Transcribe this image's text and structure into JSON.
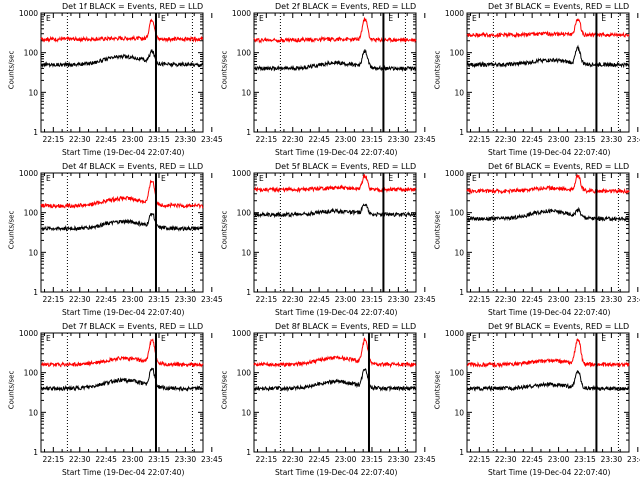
{
  "chart_data": [
    {
      "type": "line",
      "title": "Det 1f BLACK = Events, RED = LLD",
      "xlabel": "Start Time (19-Dec-04 22:07:40)",
      "ylabel": "Counts/sec",
      "yscale": "log",
      "ylim": [
        1,
        1000
      ],
      "x_ticks": [
        "22:15",
        "22:30",
        "22:45",
        "23:00",
        "23:15",
        "23:30",
        "23:45"
      ],
      "yticks": [
        "1",
        "10",
        "100",
        "1000"
      ],
      "xlim_min": [
        8,
        100
      ],
      "marker_dotted_min": 23,
      "marker_solid_min": 73.3,
      "marker_label": "E",
      "marker_dotted_right_min": 94,
      "series": [
        {
          "name": "Events",
          "color": "#000000",
          "level": 50,
          "bump": 80,
          "peak": 110
        },
        {
          "name": "LLD",
          "color": "#ff0000",
          "level": 220,
          "bump": 230,
          "peak": 700
        }
      ]
    },
    {
      "type": "line",
      "title": "Det 2f BLACK = Events, RED = LLD",
      "xlabel": "Start Time (19-Dec-04 22:07:40)",
      "ylabel": "Counts/sec",
      "yscale": "log",
      "ylim": [
        1,
        1000
      ],
      "x_ticks": [
        "22:15",
        "22:30",
        "22:45",
        "23:00",
        "23:15",
        "23:30",
        "23:45"
      ],
      "yticks": [
        "1",
        "10",
        "100",
        "1000"
      ],
      "xlim_min": [
        8,
        100
      ],
      "marker_dotted_min": 23,
      "marker_solid_min": 81.5,
      "marker_label": "E",
      "marker_dotted_right_min": 94,
      "series": [
        {
          "name": "Events",
          "color": "#000000",
          "level": 40,
          "bump": 55,
          "peak": 110
        },
        {
          "name": "LLD",
          "color": "#ff0000",
          "level": 210,
          "bump": 220,
          "peak": 700
        }
      ]
    },
    {
      "type": "line",
      "title": "Det 3f BLACK = Events, RED = LLD",
      "xlabel": "Start Time (19-Dec-04 22:07:40)",
      "ylabel": "Counts/sec",
      "yscale": "log",
      "ylim": [
        1,
        1000
      ],
      "x_ticks": [
        "22:15",
        "22:30",
        "22:45",
        "23:00",
        "23:15",
        "23:30",
        "23:45"
      ],
      "yticks": [
        "1",
        "10",
        "100",
        "1000"
      ],
      "xlim_min": [
        8,
        100
      ],
      "marker_dotted_min": 23,
      "marker_solid_min": 81.5,
      "marker_label": "E",
      "marker_dotted_right_min": 94,
      "series": [
        {
          "name": "Events",
          "color": "#000000",
          "level": 50,
          "bump": 65,
          "peak": 130
        },
        {
          "name": "LLD",
          "color": "#ff0000",
          "level": 280,
          "bump": 300,
          "peak": 700
        }
      ]
    },
    {
      "type": "line",
      "title": "Det 4f BLACK = Events, RED = LLD",
      "xlabel": "Start Time (19-Dec-04 22:07:40)",
      "ylabel": "Counts/sec",
      "yscale": "log",
      "ylim": [
        1,
        1000
      ],
      "x_ticks": [
        "22:15",
        "22:30",
        "22:45",
        "23:00",
        "23:15",
        "23:30",
        "23:45"
      ],
      "yticks": [
        "1",
        "10",
        "100",
        "1000"
      ],
      "xlim_min": [
        8,
        100
      ],
      "marker_dotted_min": 23,
      "marker_solid_min": 73.3,
      "marker_label": "E",
      "marker_dotted_right_min": 94,
      "series": [
        {
          "name": "Events",
          "color": "#000000",
          "level": 40,
          "bump": 60,
          "peak": 100
        },
        {
          "name": "LLD",
          "color": "#ff0000",
          "level": 150,
          "bump": 230,
          "peak": 650
        }
      ]
    },
    {
      "type": "line",
      "title": "Det 5f BLACK = Events, RED = LLD",
      "xlabel": "Start Time (19-Dec-04 22:07:40)",
      "ylabel": "Counts/sec",
      "yscale": "log",
      "ylim": [
        1,
        1000
      ],
      "x_ticks": [
        "22:15",
        "22:30",
        "22:45",
        "23:00",
        "23:15",
        "23:30",
        "23:45"
      ],
      "yticks": [
        "1",
        "10",
        "100",
        "1000"
      ],
      "xlim_min": [
        8,
        100
      ],
      "marker_dotted_min": 23,
      "marker_solid_min": 81.5,
      "marker_label": "E",
      "marker_dotted_right_min": 94,
      "series": [
        {
          "name": "Events",
          "color": "#000000",
          "level": 90,
          "bump": 110,
          "peak": 170
        },
        {
          "name": "LLD",
          "color": "#ff0000",
          "level": 380,
          "bump": 420,
          "peak": 850
        }
      ]
    },
    {
      "type": "line",
      "title": "Det 6f BLACK = Events, RED = LLD",
      "xlabel": "Start Time (19-Dec-04 22:07:40)",
      "ylabel": "Counts/sec",
      "yscale": "log",
      "ylim": [
        1,
        1000
      ],
      "x_ticks": [
        "22:15",
        "22:30",
        "22:45",
        "23:00",
        "23:15",
        "23:30",
        "23:45"
      ],
      "yticks": [
        "1",
        "10",
        "100",
        "1000"
      ],
      "xlim_min": [
        8,
        100
      ],
      "marker_dotted_min": 23,
      "marker_solid_min": 81.5,
      "marker_label": "E",
      "marker_dotted_right_min": 94,
      "series": [
        {
          "name": "Events",
          "color": "#000000",
          "level": 70,
          "bump": 110,
          "peak": 120
        },
        {
          "name": "LLD",
          "color": "#ff0000",
          "level": 350,
          "bump": 420,
          "peak": 850
        }
      ]
    },
    {
      "type": "line",
      "title": "Det 7f BLACK = Events, RED = LLD",
      "xlabel": "Start Time (19-Dec-04 22:07:40)",
      "ylabel": "Counts/sec",
      "yscale": "log",
      "ylim": [
        1,
        1000
      ],
      "x_ticks": [
        "22:15",
        "22:30",
        "22:45",
        "23:00",
        "23:15",
        "23:30",
        "23:45"
      ],
      "yticks": [
        "1",
        "10",
        "100",
        "1000"
      ],
      "xlim_min": [
        8,
        100
      ],
      "marker_dotted_min": 23,
      "marker_solid_min": 73.3,
      "marker_label": "E",
      "marker_dotted_right_min": 94,
      "series": [
        {
          "name": "Events",
          "color": "#000000",
          "level": 40,
          "bump": 65,
          "peak": 130
        },
        {
          "name": "LLD",
          "color": "#ff0000",
          "level": 160,
          "bump": 230,
          "peak": 700
        }
      ]
    },
    {
      "type": "line",
      "title": "Det 8f BLACK = Events, RED = LLD",
      "xlabel": "Start Time (19-Dec-04 22:07:40)",
      "ylabel": "Counts/sec",
      "yscale": "log",
      "ylim": [
        1,
        1000
      ],
      "x_ticks": [
        "22:15",
        "22:30",
        "22:45",
        "23:00",
        "23:15",
        "23:30",
        "23:45"
      ],
      "yticks": [
        "1",
        "10",
        "100",
        "1000"
      ],
      "xlim_min": [
        8,
        100
      ],
      "marker_dotted_min": 23,
      "marker_solid_min": 73.3,
      "marker_label": "E",
      "marker_dotted_right_min": 94,
      "series": [
        {
          "name": "Events",
          "color": "#000000",
          "level": 40,
          "bump": 60,
          "peak": 130
        },
        {
          "name": "LLD",
          "color": "#ff0000",
          "level": 160,
          "bump": 240,
          "peak": 700
        }
      ]
    },
    {
      "type": "line",
      "title": "Det 9f BLACK = Events, RED = LLD",
      "xlabel": "Start Time (19-Dec-04 22:07:40)",
      "ylabel": "Counts/sec",
      "yscale": "log",
      "ylim": [
        1,
        1000
      ],
      "x_ticks": [
        "22:15",
        "22:30",
        "22:45",
        "23:00",
        "23:15",
        "23:30",
        "23:45"
      ],
      "yticks": [
        "1",
        "10",
        "100",
        "1000"
      ],
      "xlim_min": [
        8,
        100
      ],
      "marker_dotted_min": 23,
      "marker_solid_min": 81.5,
      "marker_label": "E",
      "marker_dotted_right_min": 94,
      "series": [
        {
          "name": "Events",
          "color": "#000000",
          "level": 40,
          "bump": 50,
          "peak": 110
        },
        {
          "name": "LLD",
          "color": "#ff0000",
          "level": 160,
          "bump": 200,
          "peak": 700
        }
      ]
    }
  ]
}
